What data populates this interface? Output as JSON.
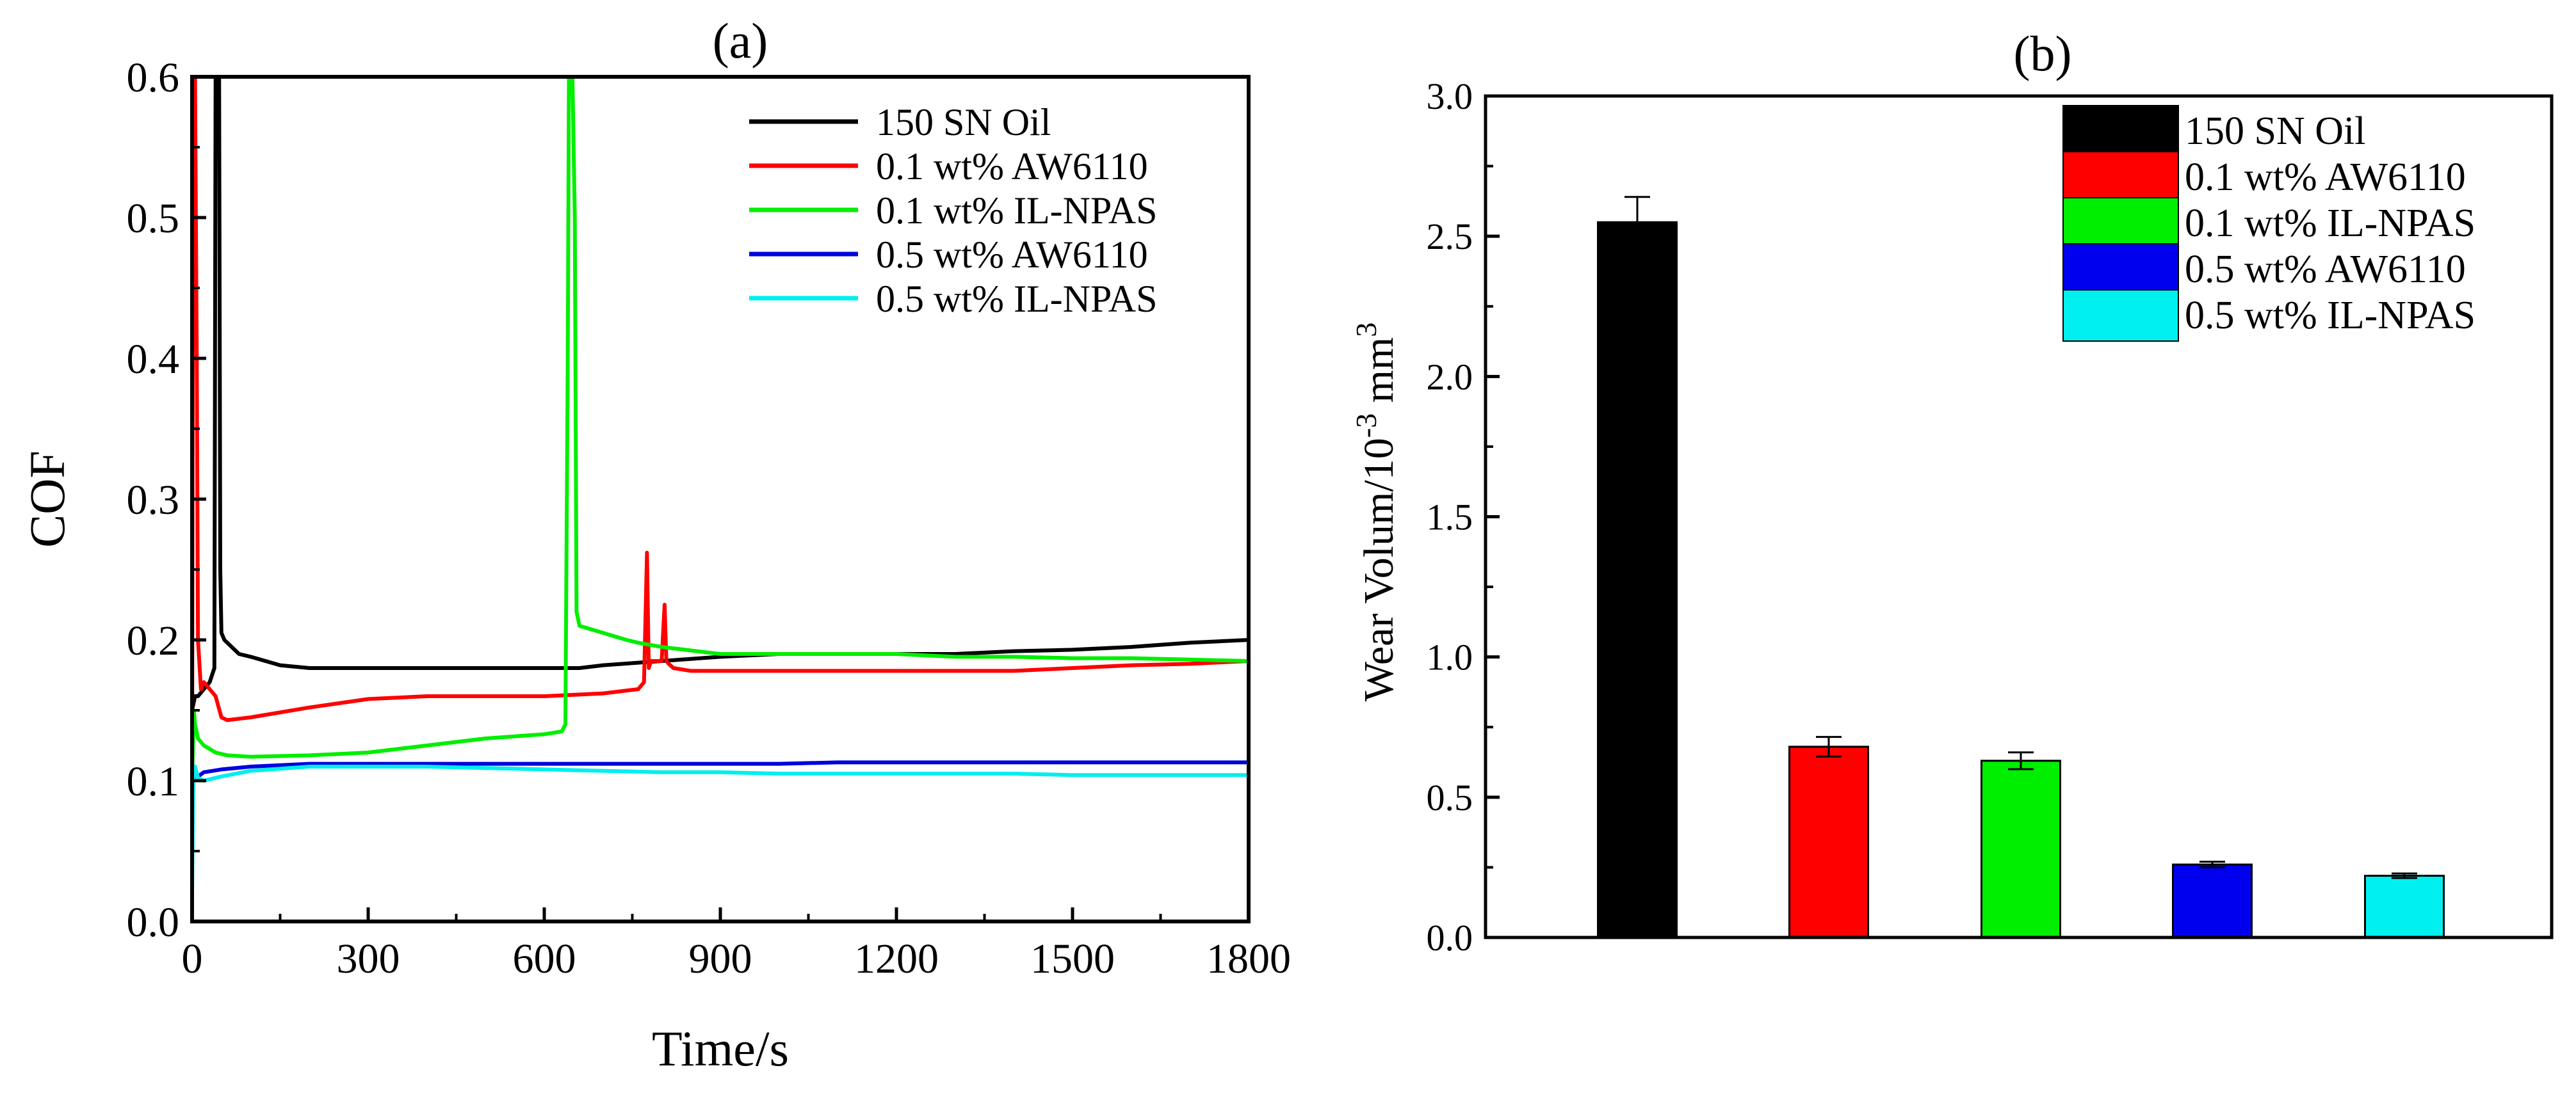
{
  "chart_data": [
    {
      "panel": "a",
      "type": "line",
      "title": "(a)",
      "xlabel": "Time/s",
      "ylabel": "COF",
      "xlim": [
        0,
        1800
      ],
      "ylim": [
        0,
        0.6
      ],
      "xticks": [
        "0",
        "300",
        "600",
        "900",
        "1200",
        "1500",
        "1800"
      ],
      "yticks": [
        "0.0",
        "0.1",
        "0.2",
        "0.3",
        "0.4",
        "0.5",
        "0.6"
      ],
      "legend_position": "top-right",
      "series": [
        {
          "name": "150 SN Oil",
          "color": "#000000",
          "x": [
            0,
            5,
            10,
            20,
            30,
            38,
            40,
            42,
            44,
            46,
            48,
            50,
            55,
            60,
            80,
            100,
            150,
            200,
            300,
            400,
            500,
            600,
            640,
            660,
            700,
            800,
            900,
            1000,
            1100,
            1200,
            1300,
            1400,
            1500,
            1600,
            1700,
            1800
          ],
          "y": [
            0.15,
            0.16,
            0.16,
            0.165,
            0.17,
            0.18,
            0.6,
            0.6,
            0.6,
            0.6,
            0.25,
            0.205,
            0.2,
            0.198,
            0.19,
            0.188,
            0.182,
            0.18,
            0.18,
            0.18,
            0.18,
            0.18,
            0.18,
            0.18,
            0.182,
            0.185,
            0.188,
            0.19,
            0.19,
            0.19,
            0.19,
            0.192,
            0.193,
            0.195,
            0.198,
            0.2
          ]
        },
        {
          "name": "0.1 wt% AW6110",
          "color": "#ff0000",
          "x": [
            0,
            2,
            5,
            8,
            10,
            15,
            20,
            30,
            40,
            50,
            60,
            100,
            200,
            300,
            400,
            500,
            600,
            700,
            760,
            770,
            775,
            778,
            782,
            790,
            800,
            805,
            808,
            812,
            820,
            850,
            900,
            1000,
            1100,
            1200,
            1300,
            1400,
            1500,
            1600,
            1700,
            1800
          ],
          "y": [
            0.1,
            0.6,
            0.6,
            0.4,
            0.2,
            0.165,
            0.17,
            0.165,
            0.16,
            0.145,
            0.143,
            0.145,
            0.152,
            0.158,
            0.16,
            0.16,
            0.16,
            0.162,
            0.165,
            0.17,
            0.262,
            0.18,
            0.185,
            0.185,
            0.185,
            0.225,
            0.185,
            0.183,
            0.18,
            0.178,
            0.178,
            0.178,
            0.178,
            0.178,
            0.178,
            0.178,
            0.18,
            0.182,
            0.183,
            0.185
          ]
        },
        {
          "name": "0.1 wt% IL-NPAS",
          "color": "#00ee00",
          "x": [
            0,
            3,
            5,
            10,
            20,
            40,
            60,
            100,
            200,
            300,
            400,
            500,
            600,
            630,
            636,
            640,
            642,
            648,
            652,
            655,
            660,
            700,
            740,
            760,
            800,
            900,
            1000,
            1100,
            1200,
            1300,
            1400,
            1500,
            1600,
            1700,
            1800
          ],
          "y": [
            0.1,
            0.15,
            0.14,
            0.13,
            0.125,
            0.12,
            0.118,
            0.117,
            0.118,
            0.12,
            0.125,
            0.13,
            0.133,
            0.135,
            0.14,
            0.4,
            0.6,
            0.6,
            0.5,
            0.22,
            0.21,
            0.205,
            0.2,
            0.198,
            0.195,
            0.19,
            0.19,
            0.19,
            0.19,
            0.188,
            0.188,
            0.187,
            0.187,
            0.186,
            0.185
          ]
        },
        {
          "name": "0.5 wt% AW6110",
          "color": "#0000dd",
          "x": [
            0,
            2,
            5,
            10,
            20,
            50,
            100,
            200,
            300,
            400,
            500,
            600,
            700,
            800,
            900,
            1000,
            1100,
            1200,
            1300,
            1400,
            1500,
            1600,
            1700,
            1800
          ],
          "y": [
            0.05,
            0.1,
            0.105,
            0.103,
            0.106,
            0.108,
            0.11,
            0.112,
            0.112,
            0.112,
            0.112,
            0.112,
            0.112,
            0.112,
            0.112,
            0.112,
            0.113,
            0.113,
            0.113,
            0.113,
            0.113,
            0.113,
            0.113,
            0.113
          ]
        },
        {
          "name": "0.5 wt% IL-NPAS",
          "color": "#00eeee",
          "x": [
            0,
            2,
            5,
            10,
            20,
            50,
            100,
            200,
            300,
            400,
            500,
            600,
            700,
            800,
            900,
            1000,
            1100,
            1200,
            1300,
            1400,
            1500,
            1600,
            1700,
            1800
          ],
          "y": [
            0.02,
            0.1,
            0.11,
            0.102,
            0.1,
            0.103,
            0.107,
            0.11,
            0.11,
            0.11,
            0.109,
            0.108,
            0.107,
            0.106,
            0.106,
            0.105,
            0.105,
            0.105,
            0.105,
            0.105,
            0.104,
            0.104,
            0.104,
            0.104
          ]
        }
      ]
    },
    {
      "panel": "b",
      "type": "bar",
      "title": "(b)",
      "ylabel_main": "Wear Volum/10",
      "ylabel_sup": "-3",
      "ylabel_unit": " mm",
      "ylabel_unit_sup": "3",
      "ylim": [
        0,
        3.0
      ],
      "yticks": [
        "0.0",
        "0.5",
        "1.0",
        "1.5",
        "2.0",
        "2.5",
        "3.0"
      ],
      "legend_position": "top-right",
      "categories": [
        "150 SN Oil",
        "0.1 wt% AW6110",
        "0.1 wt% IL-NPAS",
        "0.5 wt% AW6110",
        "0.5 wt% IL-NPAS"
      ],
      "values": [
        2.55,
        0.68,
        0.63,
        0.26,
        0.22
      ],
      "errors": [
        0.09,
        0.035,
        0.03,
        0.01,
        0.008
      ],
      "colors": [
        "#000000",
        "#ff0000",
        "#00ee00",
        "#0000ee",
        "#00f0f0"
      ]
    }
  ]
}
